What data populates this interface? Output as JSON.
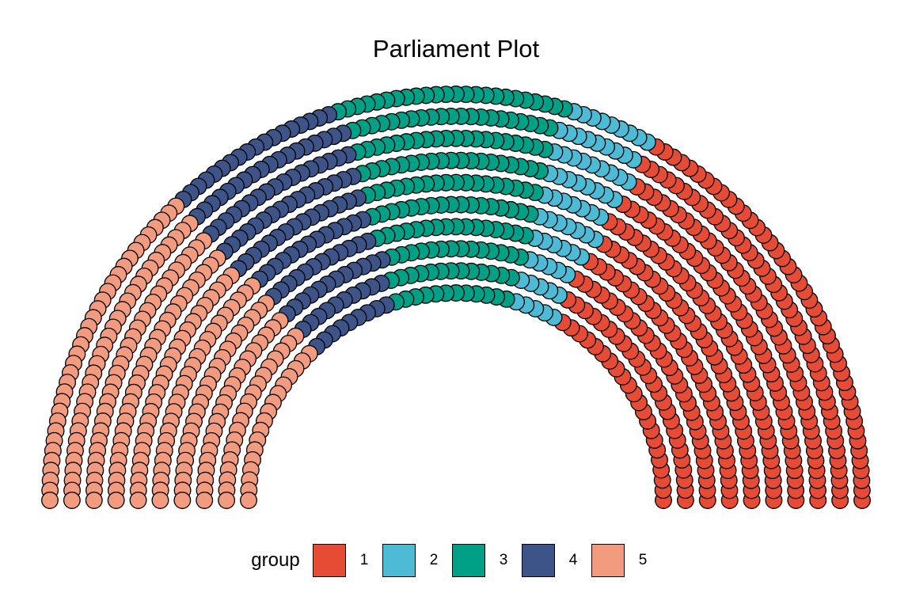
{
  "chart_data": {
    "type": "parliament",
    "title": "Parliament Plot",
    "legend": {
      "title": "group",
      "position": "bottom",
      "entries": [
        {
          "label": "1",
          "color": "#E64B35"
        },
        {
          "label": "2",
          "color": "#4DBBD5"
        },
        {
          "label": "3",
          "color": "#00A087"
        },
        {
          "label": "4",
          "color": "#3C5488"
        },
        {
          "label": "5",
          "color": "#F39B7F"
        }
      ]
    },
    "groups": [
      {
        "group": "1",
        "seats": 334,
        "color": "#E64B35"
      },
      {
        "group": "2",
        "seats": 70,
        "color": "#4DBBD5"
      },
      {
        "group": "3",
        "seats": 174,
        "color": "#00A087"
      },
      {
        "group": "4",
        "seats": 140,
        "color": "#3C5488"
      },
      {
        "group": "5",
        "seats": 255,
        "color": "#F39B7F"
      }
    ],
    "rows": 10,
    "grid": false,
    "axes": false
  }
}
